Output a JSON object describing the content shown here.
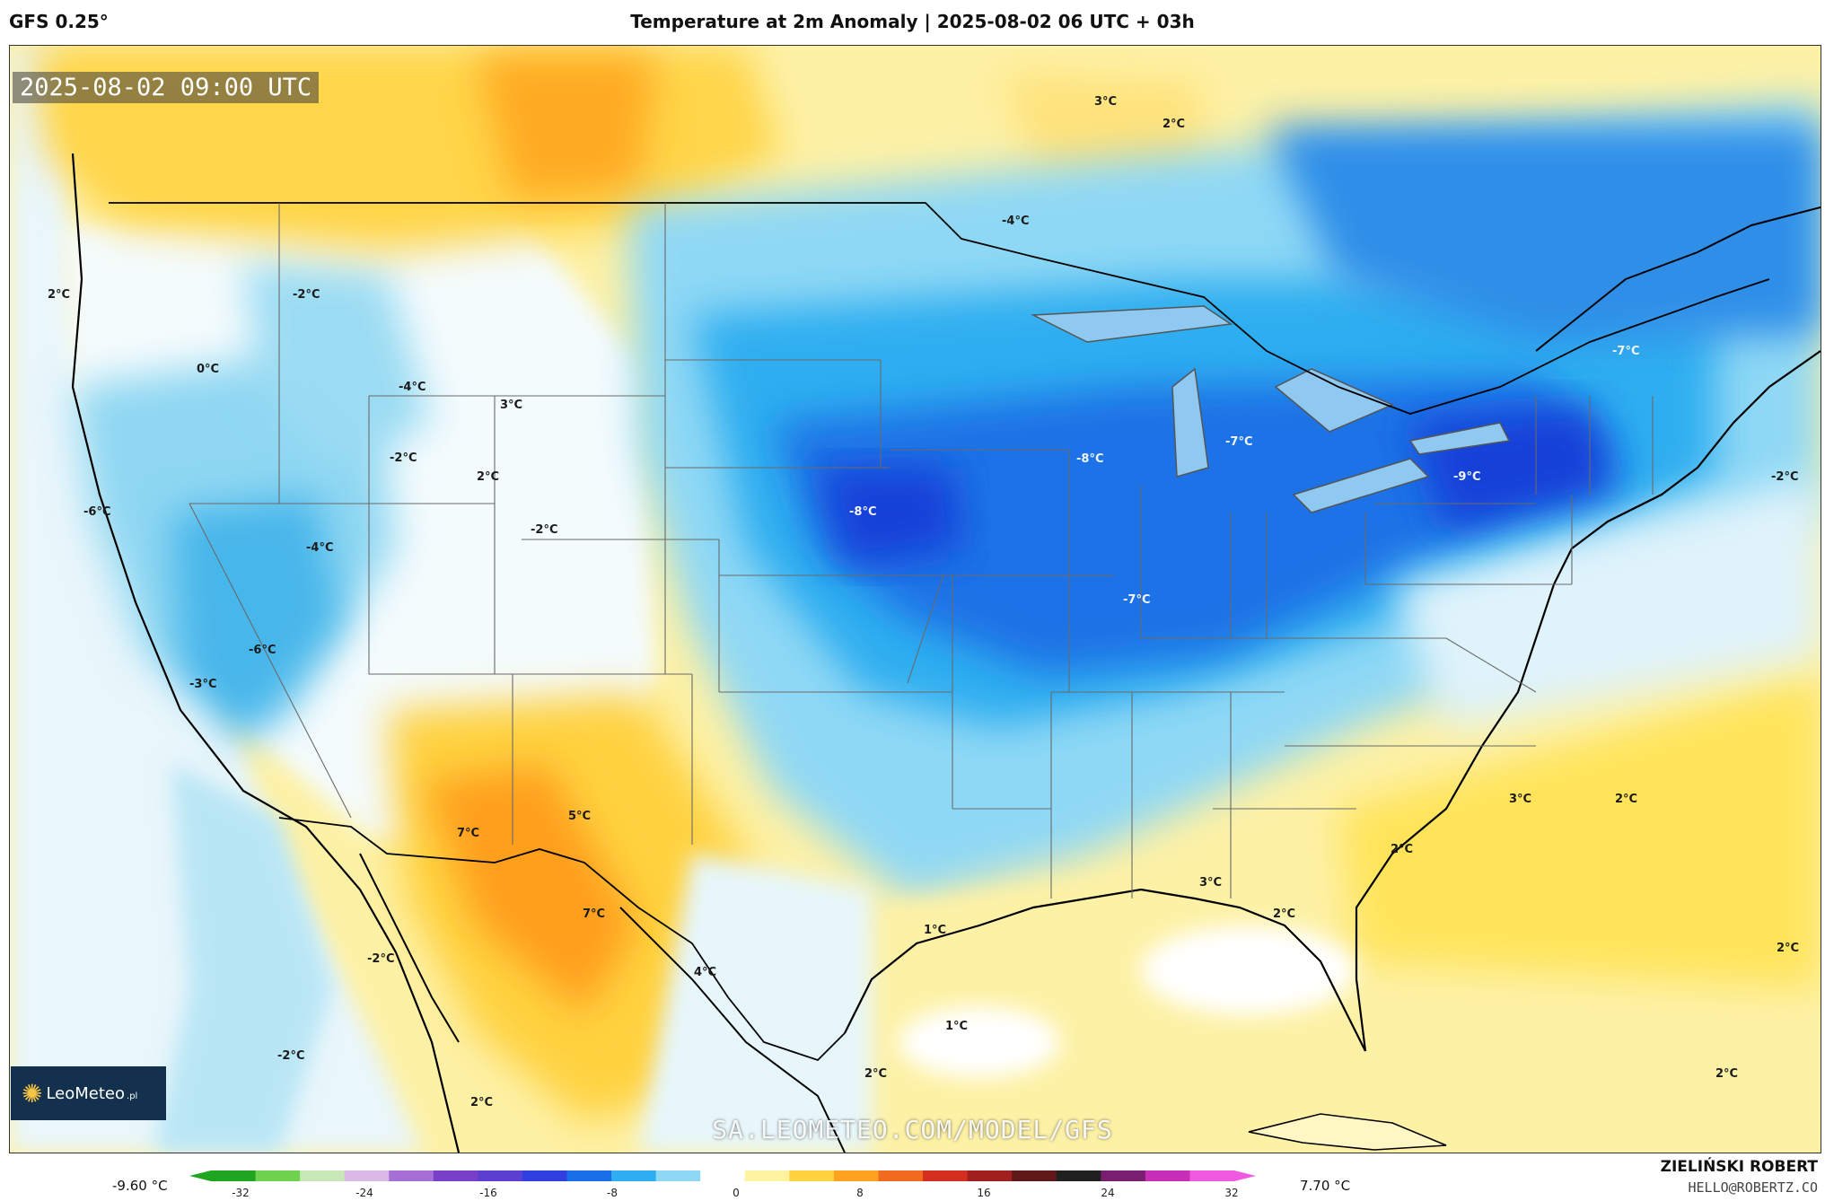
{
  "header": {
    "model": "GFS 0.25°",
    "title": "Temperature at 2m Anomaly | 2025-08-02 06 UTC + 03h"
  },
  "map": {
    "timestamp": "2025-08-02 09:00 UTC",
    "watermark": "SA.LEOMETEO.COM/MODEL/GFS",
    "logo": {
      "name": "LeoMeteo",
      "suffix": ".pl"
    },
    "labels": [
      {
        "text": "3°C"
      },
      {
        "text": "2°C"
      },
      {
        "text": "-4°C"
      },
      {
        "text": "2°C"
      },
      {
        "text": "-2°C"
      },
      {
        "text": "0°C"
      },
      {
        "text": "-4°C"
      },
      {
        "text": "3°C"
      },
      {
        "text": "-2°C"
      },
      {
        "text": "2°C"
      },
      {
        "text": "-6°C"
      },
      {
        "text": "-4°C"
      },
      {
        "text": "-2°C"
      },
      {
        "text": "-6°C"
      },
      {
        "text": "-3°C"
      },
      {
        "text": "-8°C"
      },
      {
        "text": "-8°C"
      },
      {
        "text": "-7°C"
      },
      {
        "text": "-9°C"
      },
      {
        "text": "-7°C"
      },
      {
        "text": "-7°C"
      },
      {
        "text": "-2°C"
      },
      {
        "text": "7°C"
      },
      {
        "text": "5°C"
      },
      {
        "text": "7°C"
      },
      {
        "text": "4°C"
      },
      {
        "text": "-2°C"
      },
      {
        "text": "-2°C"
      },
      {
        "text": "2°C"
      },
      {
        "text": "1°C"
      },
      {
        "text": "1°C"
      },
      {
        "text": "2°C"
      },
      {
        "text": "3°C"
      },
      {
        "text": "2°C"
      },
      {
        "text": "3°C"
      },
      {
        "text": "2°C"
      },
      {
        "text": "2°C"
      },
      {
        "text": "2°C"
      },
      {
        "text": "2°C"
      }
    ]
  },
  "legend": {
    "min_label": "-9.60 °C",
    "max_label": "7.70 °C",
    "ticks": [
      "-32",
      "-24",
      "-16",
      "-8",
      "0",
      "8",
      "16",
      "24",
      "32"
    ],
    "colors": [
      "#1fa51f",
      "#6fd24f",
      "#c8e8b8",
      "#d9b8e6",
      "#a56fd6",
      "#7a3fc8",
      "#5a3fd0",
      "#2f3fe0",
      "#1a6fe8",
      "#2eaef0",
      "#8fd8f5",
      "#ffffff",
      "#fff3a0",
      "#ffd23f",
      "#ffa21f",
      "#f06a1f",
      "#d42f1f",
      "#a01f1f",
      "#601818",
      "#202020",
      "#7a1f6f",
      "#c82fb8",
      "#f05ae0"
    ]
  },
  "credits": {
    "author": "ZIELIŃSKI ROBERT",
    "email": "HELLO@ROBERTZ.CO"
  }
}
